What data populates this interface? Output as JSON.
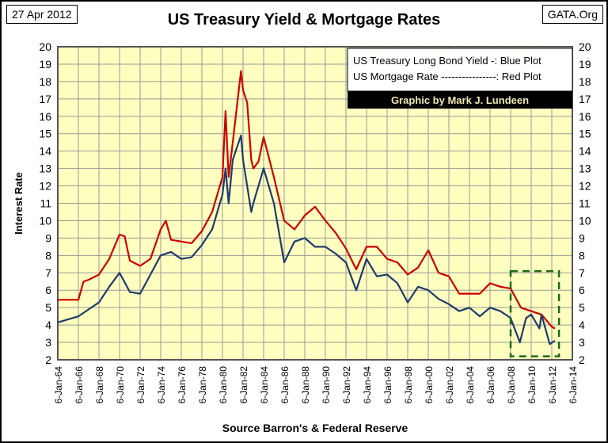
{
  "header": {
    "date": "27 Apr 2012",
    "site": "GATA.Org"
  },
  "chart_data": {
    "type": "line",
    "title": "US Treasury Yield & Mortgage Rates",
    "xlabel": "Source Barron's & Federal Reserve",
    "ylabel": "Interest Rate",
    "ylim": [
      2,
      20
    ],
    "xlim": [
      1964,
      2014
    ],
    "yticks": [
      "2",
      "3",
      "4",
      "5",
      "6",
      "7",
      "8",
      "9",
      "10",
      "11",
      "12",
      "13",
      "14",
      "15",
      "16",
      "17",
      "18",
      "19",
      "20"
    ],
    "xticks": [
      "6-Jan-64",
      "6-Jan-66",
      "6-Jan-68",
      "6-Jan-70",
      "6-Jan-72",
      "6-Jan-74",
      "6-Jan-76",
      "6-Jan-78",
      "6-Jan-80",
      "6-Jan-82",
      "6-Jan-84",
      "6-Jan-86",
      "6-Jan-88",
      "6-Jan-90",
      "6-Jan-92",
      "6-Jan-94",
      "6-Jan-96",
      "6-Jan-98",
      "6-Jan-00",
      "6-Jan-02",
      "6-Jan-04",
      "6-Jan-06",
      "6-Jan-08",
      "6-Jan-10",
      "6-Jan-12",
      "6-Jan-14"
    ],
    "grid": true,
    "legend": {
      "placement": "top-right",
      "lines": [
        "US Treasury Long  Bond Yield -: Blue Plot",
        "US Mortgage Rate ----------------: Red Plot"
      ],
      "credit": "Graphic by Mark J. Lundeen"
    },
    "highlight_box": {
      "x": [
        2008,
        2012.7
      ],
      "y": [
        2.2,
        7.1
      ],
      "color": "#1a6b1a"
    },
    "series": [
      {
        "name": "US Mortgage Rate",
        "color": "#cc0000",
        "points": [
          [
            1964,
            5.45
          ],
          [
            1965,
            5.45
          ],
          [
            1966,
            5.45
          ],
          [
            1966.5,
            6.5
          ],
          [
            1967,
            6.6
          ],
          [
            1968,
            6.9
          ],
          [
            1969,
            7.8
          ],
          [
            1970,
            9.2
          ],
          [
            1970.5,
            9.1
          ],
          [
            1971,
            7.7
          ],
          [
            1972,
            7.4
          ],
          [
            1973,
            7.8
          ],
          [
            1974,
            9.5
          ],
          [
            1974.5,
            10
          ],
          [
            1975,
            8.9
          ],
          [
            1976,
            8.8
          ],
          [
            1977,
            8.7
          ],
          [
            1978,
            9.4
          ],
          [
            1979,
            10.5
          ],
          [
            1980,
            12.5
          ],
          [
            1980.3,
            16.3
          ],
          [
            1980.6,
            12.5
          ],
          [
            1981,
            14.5
          ],
          [
            1981.8,
            18.6
          ],
          [
            1982,
            17.5
          ],
          [
            1982.4,
            16.8
          ],
          [
            1982.8,
            13.5
          ],
          [
            1983,
            13
          ],
          [
            1983.5,
            13.4
          ],
          [
            1984,
            14.8
          ],
          [
            1985,
            12.5
          ],
          [
            1986,
            10
          ],
          [
            1987,
            9.5
          ],
          [
            1988,
            10.3
          ],
          [
            1989,
            10.8
          ],
          [
            1990,
            10
          ],
          [
            1991,
            9.3
          ],
          [
            1992,
            8.4
          ],
          [
            1993,
            7.2
          ],
          [
            1994,
            8.5
          ],
          [
            1995,
            8.5
          ],
          [
            1996,
            7.8
          ],
          [
            1997,
            7.6
          ],
          [
            1998,
            6.9
          ],
          [
            1999,
            7.3
          ],
          [
            2000,
            8.3
          ],
          [
            2001,
            7
          ],
          [
            2002,
            6.8
          ],
          [
            2003,
            5.8
          ],
          [
            2004,
            5.8
          ],
          [
            2005,
            5.8
          ],
          [
            2006,
            6.4
          ],
          [
            2007,
            6.2
          ],
          [
            2008,
            6.1
          ],
          [
            2009,
            5
          ],
          [
            2010,
            4.8
          ],
          [
            2011,
            4.6
          ],
          [
            2012,
            3.9
          ],
          [
            2012.3,
            3.8
          ]
        ]
      },
      {
        "name": "US Treasury Long Bond Yield",
        "color": "#1f3a6e",
        "points": [
          [
            1964,
            4.15
          ],
          [
            1966,
            4.5
          ],
          [
            1967,
            4.9
          ],
          [
            1968,
            5.3
          ],
          [
            1969,
            6.2
          ],
          [
            1970,
            7.0
          ],
          [
            1971,
            5.9
          ],
          [
            1972,
            5.8
          ],
          [
            1973,
            6.9
          ],
          [
            1974,
            8.0
          ],
          [
            1975,
            8.2
          ],
          [
            1976,
            7.8
          ],
          [
            1977,
            7.9
          ],
          [
            1978,
            8.6
          ],
          [
            1979,
            9.5
          ],
          [
            1980,
            11.5
          ],
          [
            1980.3,
            13
          ],
          [
            1980.6,
            11
          ],
          [
            1981,
            13.5
          ],
          [
            1981.8,
            14.9
          ],
          [
            1982,
            13.5
          ],
          [
            1982.8,
            10.5
          ],
          [
            1983,
            11
          ],
          [
            1984,
            13
          ],
          [
            1985,
            11
          ],
          [
            1986,
            7.6
          ],
          [
            1987,
            8.8
          ],
          [
            1988,
            9
          ],
          [
            1989,
            8.5
          ],
          [
            1990,
            8.5
          ],
          [
            1991,
            8.1
          ],
          [
            1992,
            7.6
          ],
          [
            1993,
            6.0
          ],
          [
            1994,
            7.8
          ],
          [
            1995,
            6.8
          ],
          [
            1996,
            6.9
          ],
          [
            1997,
            6.4
          ],
          [
            1998,
            5.3
          ],
          [
            1999,
            6.2
          ],
          [
            2000,
            6.0
          ],
          [
            2001,
            5.5
          ],
          [
            2002,
            5.2
          ],
          [
            2003,
            4.8
          ],
          [
            2004,
            5.0
          ],
          [
            2005,
            4.5
          ],
          [
            2006,
            5.0
          ],
          [
            2007,
            4.8
          ],
          [
            2008,
            4.4
          ],
          [
            2008.9,
            3.0
          ],
          [
            2009.5,
            4.4
          ],
          [
            2010,
            4.6
          ],
          [
            2010.8,
            3.8
          ],
          [
            2011,
            4.6
          ],
          [
            2011.8,
            2.9
          ],
          [
            2012.3,
            3.1
          ]
        ]
      }
    ]
  }
}
